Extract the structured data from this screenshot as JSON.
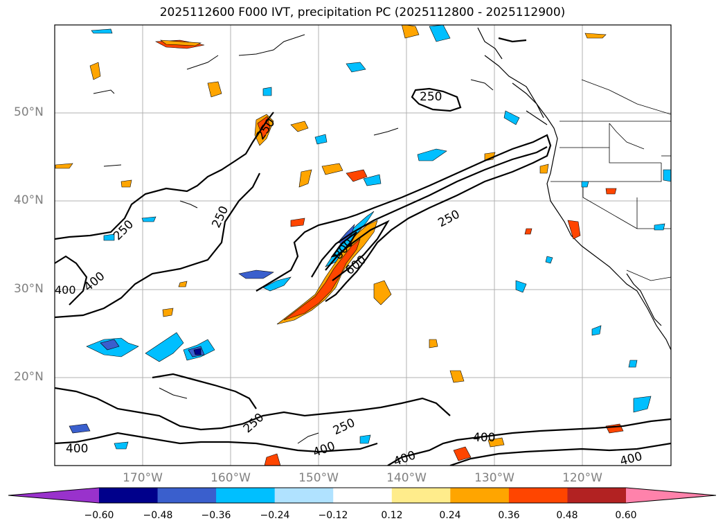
{
  "title": "2025112600 F000 IVT, precipitation PC (2025112800 - 2025112900)",
  "axes": {
    "lat_labels": [
      "50°N",
      "40°N",
      "30°N",
      "20°N"
    ],
    "lon_labels": [
      "170°W",
      "160°W",
      "150°W",
      "140°W",
      "130°W",
      "120°W"
    ]
  },
  "contours": {
    "labels": [
      "250",
      "250",
      "250",
      "250",
      "250",
      "250",
      "250",
      "400",
      "400",
      "400",
      "400",
      "400",
      "400",
      "400",
      "600",
      "800",
      "00"
    ]
  },
  "colorbar": {
    "ticks": [
      "−0.60",
      "−0.48",
      "−0.36",
      "−0.24",
      "−0.12",
      "0.12",
      "0.24",
      "0.36",
      "0.48",
      "0.60"
    ],
    "colors": [
      "#9932cc",
      "#00008b",
      "#3a5fcd",
      "#00bfff",
      "#b0e2ff",
      "#ffffff",
      "#ffec8b",
      "#ffa500",
      "#ff4500",
      "#b22222",
      "#ff82ab"
    ]
  }
}
